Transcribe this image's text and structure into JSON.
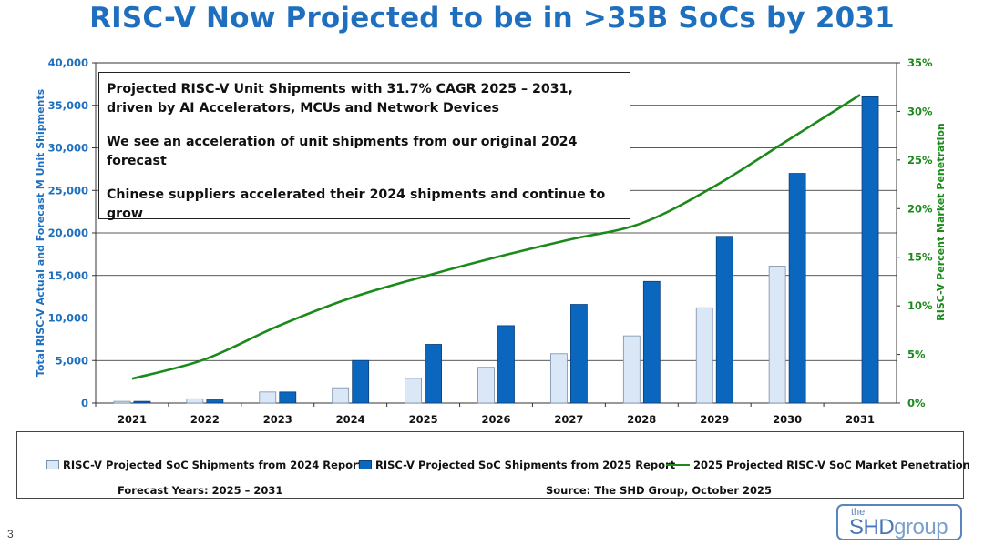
{
  "title": "RISC-V Now Projected to be in >35B SoCs by 2031",
  "callout": {
    "line1": "Projected RISC-V Unit Shipments with 31.7% CAGR 2025 – 2031, driven by AI Accelerators, MCUs and Network Devices",
    "line2": "We see an acceleration of unit shipments from our original 2024 forecast",
    "line3": "Chinese suppliers accelerated their 2024 shipments and continue to grow"
  },
  "chart_data": {
    "type": "bar",
    "categories": [
      "2021",
      "2022",
      "2023",
      "2024",
      "2025",
      "2026",
      "2027",
      "2028",
      "2029",
      "2030",
      "2031"
    ],
    "ylabel": "Total RISC-V Actual and Forecast M Unit Shipments",
    "ylabel_right": "RISC-V Percent Market Penetration",
    "ylim": [
      0,
      40000
    ],
    "ylim_right": [
      0,
      35
    ],
    "yticks": [
      "0",
      "5,000",
      "10,000",
      "15,000",
      "20,000",
      "25,000",
      "30,000",
      "35,000",
      "40,000"
    ],
    "yticks_right": [
      "0%",
      "5%",
      "10%",
      "15%",
      "20%",
      "25%",
      "30%",
      "35%"
    ],
    "grid": true,
    "series": [
      {
        "name": "RISC-V Projected SoC Shipments from 2024 Report",
        "kind": "bar",
        "color": "#d9e7f7",
        "values": [
          200,
          500,
          1300,
          1800,
          2900,
          4200,
          5800,
          7900,
          11200,
          16100,
          null
        ]
      },
      {
        "name": "RISC-V Projected SoC Shipments from 2025 Report",
        "kind": "bar",
        "color": "#0b67be",
        "values": [
          200,
          450,
          1300,
          5000,
          6900,
          9100,
          11600,
          14300,
          19600,
          27000,
          36000
        ]
      },
      {
        "name": "2025 Projected RISC-V SoC Market Penetration",
        "kind": "line",
        "axis": "right",
        "color": "#1b8a1b",
        "values": [
          2.5,
          4.5,
          7.9,
          10.8,
          13.0,
          15.0,
          16.8,
          18.5,
          22.3,
          27.0,
          31.7
        ]
      }
    ]
  },
  "footer": {
    "forecast_years": "Forecast Years: 2025 – 2031",
    "source": "Source: The SHD Group, October 2025"
  },
  "page_number": "3",
  "logo": {
    "the": "the",
    "brand_a": "SHD",
    "brand_b": "group"
  },
  "colors": {
    "title": "#1f6fbf",
    "left_axis": "#1f6fbf",
    "right_axis": "#1b8a1b"
  }
}
